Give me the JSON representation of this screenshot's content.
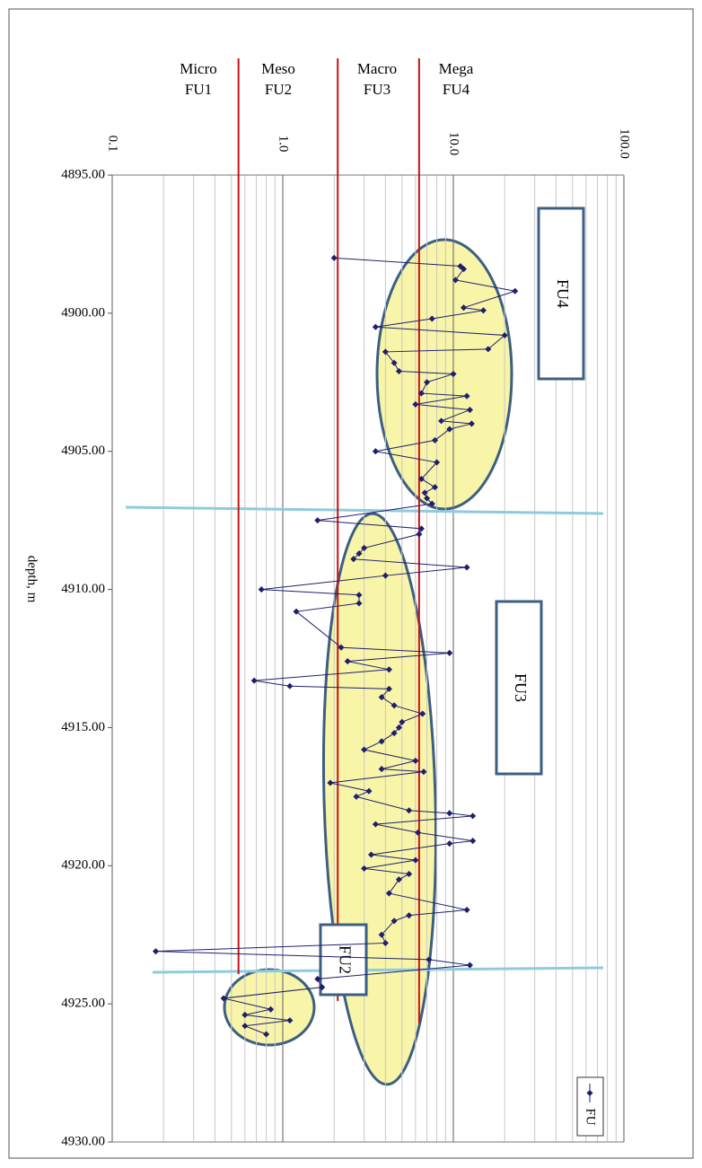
{
  "chart_data": {
    "type": "line",
    "orientation": "vertical-depth",
    "log_scale": true,
    "grid": true,
    "legend": "bottom-right",
    "axis_label": "depth, m",
    "xlim": [
      4895,
      4930
    ],
    "xticks": [
      {
        "value": 4895,
        "label": "4895.00"
      },
      {
        "value": 4900,
        "label": "4900.00"
      },
      {
        "value": 4905,
        "label": "4905.00"
      },
      {
        "value": 4910,
        "label": "4910.00"
      },
      {
        "value": 4915,
        "label": "4915.00"
      },
      {
        "value": 4920,
        "label": "4920.00"
      },
      {
        "value": 4925,
        "label": "4925.00"
      },
      {
        "value": 4930,
        "label": "4930.00"
      }
    ],
    "ylim": [
      0.1,
      100
    ],
    "yticks": [
      0.1,
      {
        "value": 1,
        "label": "1.0"
      },
      {
        "value": 10,
        "label": "10.0"
      },
      {
        "value": 100,
        "label": "100.0"
      }
    ],
    "zone_color": "#cc1111",
    "zones": [
      {
        "name": "Micro",
        "label": "FU1",
        "value": 0.55
      },
      {
        "name": "Meso",
        "label": "FU2",
        "value": 2.1
      },
      {
        "name": "Macro",
        "label": "FU3",
        "value": 6.3
      },
      {
        "name": "Mega",
        "label": "FU4",
        "value": 6.3
      }
    ],
    "annotations": [
      "FU4",
      "FU3",
      "FU2"
    ],
    "x": [
      4898.0,
      4898.3,
      4898.4,
      4898.8,
      4899.2,
      4899.8,
      4899.9,
      4900.2,
      4900.5,
      4900.8,
      4901.3,
      4901.4,
      4901.8,
      4902.1,
      4902.2,
      4902.5,
      4902.9,
      4903.0,
      4903.3,
      4903.5,
      4903.9,
      4904.0,
      4904.2,
      4904.6,
      4905.0,
      4905.4,
      4906.0,
      4906.3,
      4906.5,
      4906.7,
      4906.9,
      4907.5,
      4907.8,
      4908.0,
      4908.5,
      4908.7,
      4908.9,
      4909.2,
      4909.5,
      4910.0,
      4910.2,
      4910.5,
      4910.8,
      4912.1,
      4912.3,
      4912.6,
      4912.9,
      4913.3,
      4913.5,
      4913.6,
      4913.9,
      4914.2,
      4914.5,
      4914.8,
      4915.0,
      4915.2,
      4915.5,
      4915.8,
      4916.2,
      4916.5,
      4916.6,
      4917.0,
      4917.3,
      4917.5,
      4918.0,
      4918.1,
      4918.2,
      4918.5,
      4918.8,
      4919.1,
      4919.2,
      4919.6,
      4919.8,
      4920.1,
      4920.3,
      4920.5,
      4921.0,
      4921.6,
      4921.8,
      4922.0,
      4922.5,
      4922.8,
      4923.1,
      4923.4,
      4923.6,
      4924.1,
      4924.4,
      4924.8,
      4925.2,
      4925.4,
      4925.6,
      4925.8,
      4926.1
    ],
    "series": [
      {
        "name": "FU",
        "color": "#1f1f6e",
        "values": [
          2.0,
          11.0,
          11.5,
          10.3,
          23,
          11.5,
          15,
          7.5,
          3.5,
          20,
          16,
          4.0,
          4.5,
          4.8,
          10,
          7,
          6.5,
          12,
          6.0,
          12.5,
          8.5,
          12.8,
          9.5,
          7.8,
          3.5,
          8,
          6.5,
          7.8,
          6.8,
          7.0,
          7.5,
          1.6,
          6.5,
          6.3,
          3.0,
          2.8,
          2.6,
          12.0,
          4.0,
          0.75,
          2.8,
          2.8,
          1.2,
          2.2,
          9.5,
          2.4,
          4.2,
          0.68,
          1.1,
          4.2,
          3.8,
          4.5,
          6.6,
          5.0,
          4.8,
          4.5,
          3.8,
          3.0,
          6.0,
          3.8,
          6.7,
          1.9,
          3.2,
          2.7,
          5.5,
          9.5,
          13.0,
          3.5,
          6.2,
          13,
          9.5,
          3.3,
          6.0,
          3.0,
          5.5,
          4.8,
          4.2,
          12,
          5.5,
          4.5,
          3.8,
          4.0,
          0.18,
          7.2,
          12.5,
          1.6,
          1.7,
          0.45,
          0.85,
          0.6,
          1.1,
          0.6,
          0.8
        ]
      }
    ]
  }
}
